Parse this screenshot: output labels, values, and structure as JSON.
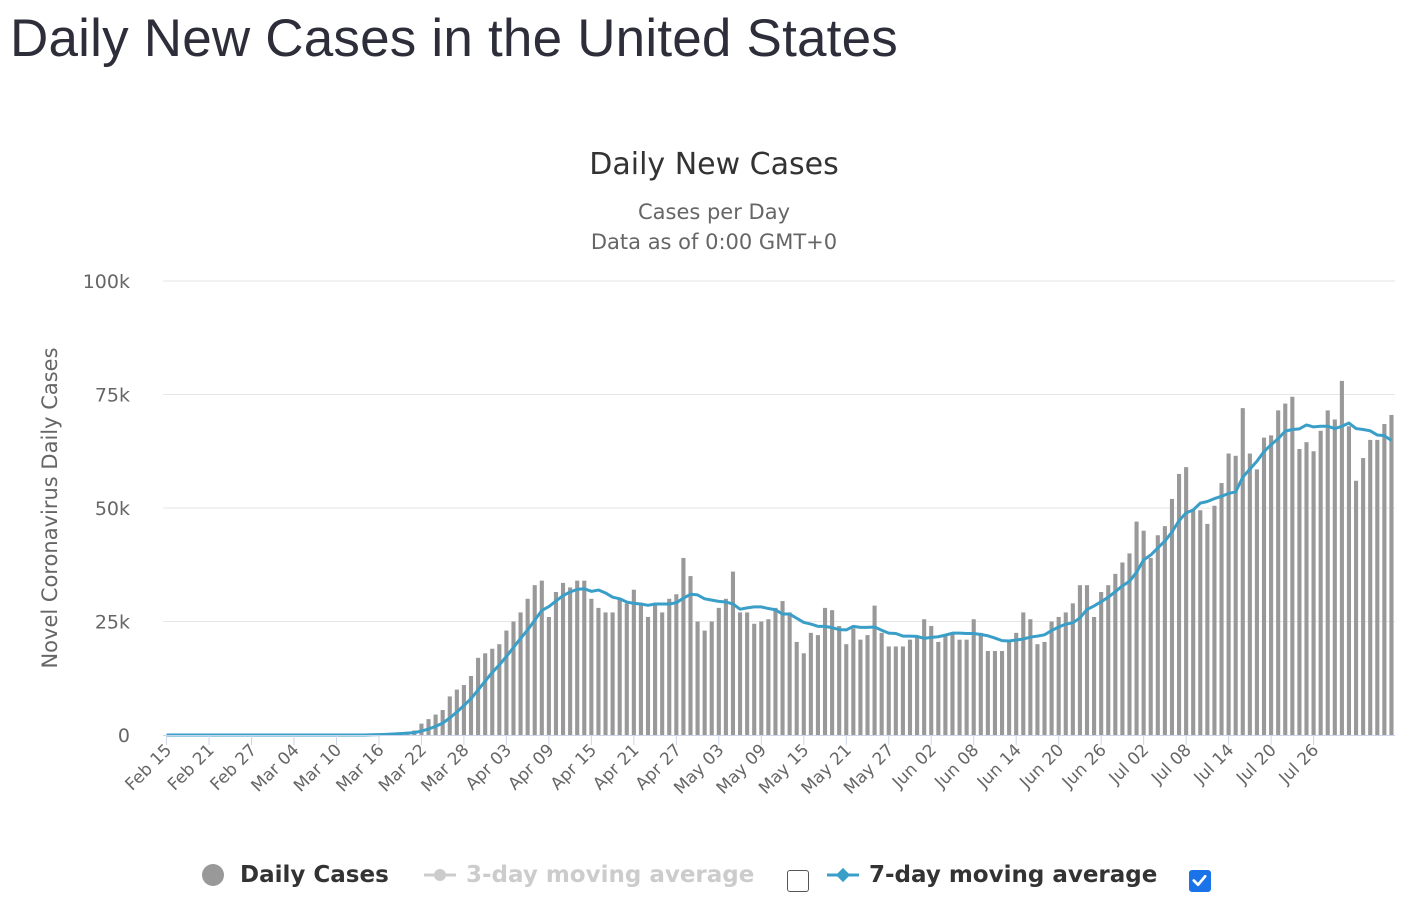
{
  "page": {
    "title": "Daily New Cases in the United States"
  },
  "chart_data": {
    "type": "bar",
    "title": "Daily New Cases",
    "subtitle_lines": [
      "Cases per Day",
      "Data as of 0:00 GMT+0"
    ],
    "ylabel": "Novel Coronavirus Daily Cases",
    "xlabel": "",
    "ylim": [
      0,
      100000
    ],
    "ytick_labels": [
      "0",
      "25k",
      "50k",
      "75k",
      "100k"
    ],
    "ytick_values": [
      0,
      25000,
      50000,
      75000,
      100000
    ],
    "xtick_labels": [
      "Feb 15",
      "Feb 21",
      "Feb 27",
      "Mar 04",
      "Mar 10",
      "Mar 16",
      "Mar 22",
      "Mar 28",
      "Apr 03",
      "Apr 09",
      "Apr 15",
      "Apr 21",
      "Apr 27",
      "May 03",
      "May 09",
      "May 15",
      "May 21",
      "May 27",
      "Jun 02",
      "Jun 08",
      "Jun 14",
      "Jun 20",
      "Jun 26",
      "Jul 02",
      "Jul 08",
      "Jul 14",
      "Jul 20",
      "Jul 26"
    ],
    "xtick_every": 6,
    "start_date": "Feb 15",
    "grid": true,
    "legend_position": "bottom",
    "series": [
      {
        "name": "Daily Cases",
        "type": "bar",
        "color": "#999999",
        "values": [
          0,
          0,
          0,
          0,
          0,
          0,
          0,
          0,
          0,
          0,
          0,
          0,
          0,
          0,
          0,
          0,
          0,
          0,
          0,
          0,
          0,
          0,
          0,
          0,
          0,
          0,
          0,
          0,
          100,
          200,
          300,
          400,
          500,
          600,
          700,
          1000,
          2500,
          3500,
          4500,
          5500,
          8500,
          10000,
          11000,
          13000,
          17000,
          18000,
          19000,
          20000,
          23000,
          25000,
          27000,
          30000,
          33000,
          34000,
          26000,
          31500,
          33500,
          32500,
          34000,
          34000,
          30000,
          28000,
          27000,
          27000,
          30000,
          29000,
          32000,
          29000,
          26000,
          29000,
          27000,
          30000,
          31000,
          39000,
          35000,
          25000,
          23000,
          25000,
          28000,
          30000,
          36000,
          27000,
          27000,
          24500,
          25000,
          25500,
          28000,
          29500,
          27000,
          20500,
          18000,
          22500,
          22000,
          28000,
          27500,
          24000,
          20000,
          23500,
          21000,
          22000,
          28500,
          22500,
          19500,
          19500,
          19500,
          21000,
          21500,
          25500,
          24000,
          20500,
          22000,
          22500,
          21000,
          21000,
          25500,
          22500,
          18500,
          18500,
          18500,
          20500,
          22500,
          27000,
          25500,
          20000,
          20500,
          25000,
          26000,
          27000,
          29000,
          33000,
          33000,
          26000,
          31500,
          33000,
          35500,
          38000,
          40000,
          47000,
          45000,
          39000,
          44000,
          46000,
          52000,
          57500,
          59000,
          49500,
          49500,
          46500,
          50500,
          55500,
          62000,
          61500,
          72000,
          62000,
          58500,
          65500,
          66000,
          71500,
          73000,
          74500,
          63000,
          64500,
          62500,
          67000,
          71500,
          69500,
          78000,
          68000,
          56000,
          61000,
          65000,
          65000,
          68500,
          70500
        ]
      },
      {
        "name": "3-day moving average",
        "type": "line",
        "color": "#cccccc",
        "visible": false
      },
      {
        "name": "7-day moving average",
        "type": "line",
        "color": "#3a9fc8",
        "visible": true
      }
    ]
  },
  "legend": {
    "items": [
      {
        "label": "Daily Cases",
        "color": "#333333",
        "marker_color": "#999999",
        "checkbox": null
      },
      {
        "label": "3-day moving average",
        "color": "#cccccc",
        "marker_color": "#cccccc",
        "checkbox": false
      },
      {
        "label": "7-day moving average",
        "color": "#333333",
        "marker_color": "#3a9fc8",
        "checkbox": true
      }
    ]
  },
  "colors": {
    "checkbox_checked": "#1a73e8",
    "axis_line": "#ccd6eb",
    "grid": "#e6e6e6",
    "text": "#333333",
    "tick_text": "#666666"
  }
}
